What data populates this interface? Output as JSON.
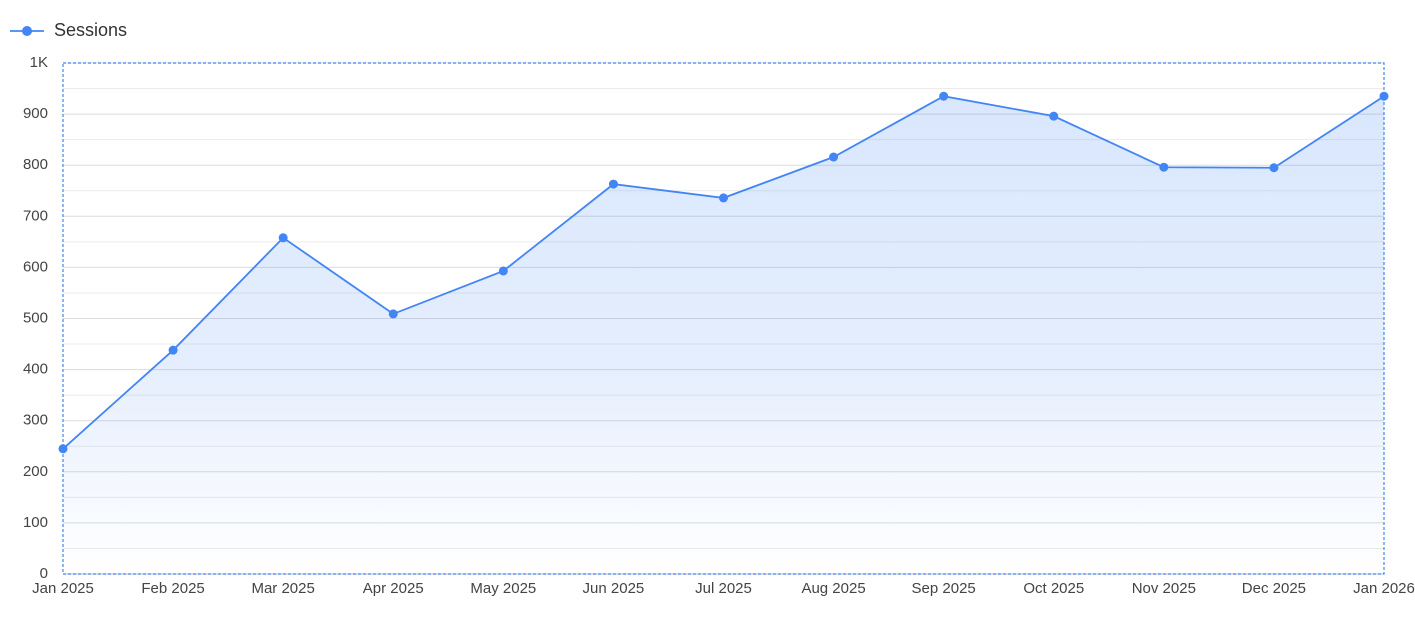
{
  "chart_data": {
    "type": "area-line",
    "categories": [
      "Jan 2025",
      "Feb 2025",
      "Mar 2025",
      "Apr 2025",
      "May 2025",
      "Jun 2025",
      "Jul 2025",
      "Aug 2025",
      "Sep 2025",
      "Oct 2025",
      "Nov 2025",
      "Dec 2025",
      "Jan 2026"
    ],
    "series": [
      {
        "name": "Sessions",
        "color": "#4285f4",
        "values": [
          245,
          438,
          658,
          509,
          593,
          763,
          736,
          816,
          935,
          896,
          796,
          795,
          935
        ]
      }
    ],
    "ylim": [
      0,
      1000
    ],
    "yticks": [
      0,
      100,
      200,
      300,
      400,
      500,
      600,
      700,
      800,
      900,
      {
        "value": 1000,
        "label": "1K"
      }
    ],
    "grid": true,
    "legend": "top-left"
  }
}
